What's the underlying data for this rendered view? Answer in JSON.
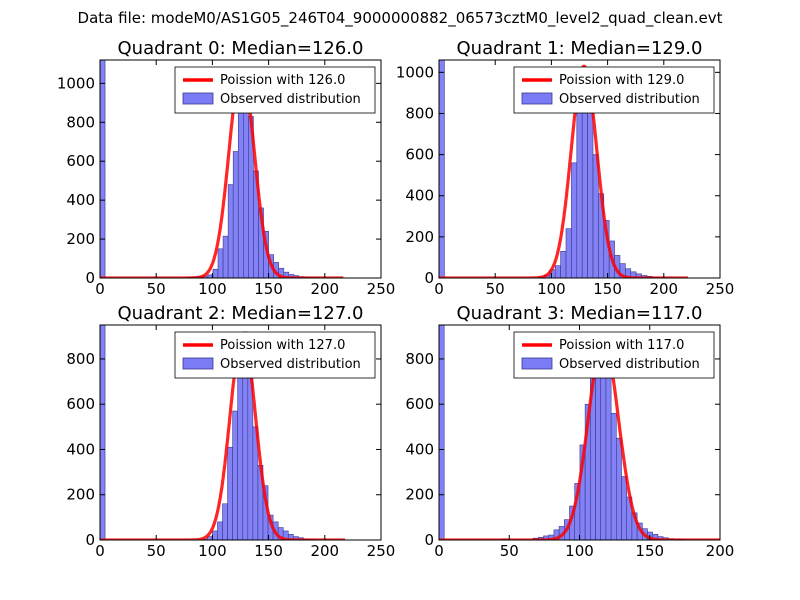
{
  "suptitle": "Data file: modeM0/AS1G05_246T04_9000000882_06573cztM0_level2_quad_clean.evt",
  "colors": {
    "bar": "#7b7bf5",
    "bar_edge": "#3a3a8a",
    "poisson": "#ff0000"
  },
  "chart_data": [
    {
      "type": "bar",
      "quadrant": 0,
      "title": "Quadrant 0: Median=126.0",
      "legend": [
        "Poission with 126.0",
        "Observed distribution"
      ],
      "legend_location": "top-right",
      "xlim": [
        0,
        250
      ],
      "ylim": [
        0,
        1120
      ],
      "xticks": [
        0,
        50,
        100,
        150,
        200,
        250
      ],
      "yticks": [
        0,
        200,
        400,
        600,
        800,
        1000
      ],
      "median": 126.0,
      "poisson_peak": 1075,
      "bin_width": 4.5,
      "bins": [
        [
          0,
          1120
        ],
        [
          78,
          4
        ],
        [
          82.5,
          6
        ],
        [
          87,
          8
        ],
        [
          91.5,
          10
        ],
        [
          96,
          16
        ],
        [
          100.5,
          45
        ],
        [
          105,
          150
        ],
        [
          109.5,
          215
        ],
        [
          114,
          480
        ],
        [
          118.5,
          650
        ],
        [
          123,
          860
        ],
        [
          127.5,
          940
        ],
        [
          132,
          830
        ],
        [
          136.5,
          550
        ],
        [
          141,
          360
        ],
        [
          145.5,
          240
        ],
        [
          150,
          120
        ],
        [
          154.5,
          80
        ],
        [
          159,
          50
        ],
        [
          163.5,
          30
        ],
        [
          168,
          18
        ],
        [
          172.5,
          12
        ],
        [
          177,
          7
        ],
        [
          181.5,
          4
        ],
        [
          186,
          3
        ],
        [
          190.5,
          2
        ]
      ]
    },
    {
      "type": "bar",
      "quadrant": 1,
      "title": "Quadrant 1: Median=129.0",
      "legend": [
        "Poission with 129.0",
        "Observed distribution"
      ],
      "legend_location": "top-right",
      "xlim": [
        0,
        250
      ],
      "ylim": [
        0,
        1060
      ],
      "xticks": [
        0,
        50,
        100,
        150,
        200,
        250
      ],
      "yticks": [
        0,
        200,
        400,
        600,
        800,
        1000
      ],
      "median": 129.0,
      "poisson_peak": 1030,
      "bin_width": 4.8,
      "bins": [
        [
          0,
          1060
        ],
        [
          89,
          4
        ],
        [
          93.8,
          12
        ],
        [
          98.6,
          40
        ],
        [
          103.4,
          60
        ],
        [
          108.2,
          130
        ],
        [
          113,
          240
        ],
        [
          117.8,
          560
        ],
        [
          122.6,
          830
        ],
        [
          127.4,
          1010
        ],
        [
          132.2,
          850
        ],
        [
          137,
          600
        ],
        [
          141.8,
          410
        ],
        [
          146.6,
          280
        ],
        [
          151.4,
          180
        ],
        [
          156.2,
          110
        ],
        [
          161,
          70
        ],
        [
          165.8,
          45
        ],
        [
          170.6,
          30
        ],
        [
          175.4,
          20
        ],
        [
          180.2,
          12
        ],
        [
          185,
          8
        ],
        [
          189.8,
          4
        ],
        [
          194.6,
          2
        ]
      ]
    },
    {
      "type": "bar",
      "quadrant": 2,
      "title": "Quadrant 2: Median=127.0",
      "legend": [
        "Poission with 127.0",
        "Observed distribution"
      ],
      "legend_location": "top-right",
      "xlim": [
        0,
        250
      ],
      "ylim": [
        0,
        950
      ],
      "xticks": [
        0,
        50,
        100,
        150,
        200,
        250
      ],
      "yticks": [
        0,
        200,
        400,
        600,
        800
      ],
      "median": 127.0,
      "poisson_peak": 910,
      "bin_width": 4.5,
      "bins": [
        [
          0,
          950
        ],
        [
          91,
          4
        ],
        [
          95.5,
          15
        ],
        [
          100,
          40
        ],
        [
          104.5,
          80
        ],
        [
          109,
          160
        ],
        [
          113.5,
          410
        ],
        [
          118,
          570
        ],
        [
          122.5,
          720
        ],
        [
          127,
          920
        ],
        [
          131.5,
          720
        ],
        [
          136,
          500
        ],
        [
          140.5,
          330
        ],
        [
          145,
          240
        ],
        [
          149.5,
          110
        ],
        [
          154,
          80
        ],
        [
          158.5,
          55
        ],
        [
          163,
          40
        ],
        [
          167.5,
          25
        ],
        [
          172,
          15
        ],
        [
          176.5,
          10
        ],
        [
          181,
          5
        ],
        [
          185.5,
          3
        ]
      ]
    },
    {
      "type": "bar",
      "quadrant": 3,
      "title": "Quadrant 3: Median=117.0",
      "legend": [
        "Poission with 117.0",
        "Observed distribution"
      ],
      "legend_location": "top-right",
      "xlim": [
        0,
        200
      ],
      "ylim": [
        0,
        950
      ],
      "xticks": [
        0,
        50,
        100,
        150,
        200
      ],
      "yticks": [
        0,
        200,
        400,
        600,
        800
      ],
      "median": 117.0,
      "poisson_peak": 880,
      "bin_width": 3.7,
      "bins": [
        [
          0,
          950
        ],
        [
          45,
          5
        ],
        [
          67,
          8
        ],
        [
          70.7,
          12
        ],
        [
          74.4,
          18
        ],
        [
          78.1,
          22
        ],
        [
          81.8,
          45
        ],
        [
          85.5,
          60
        ],
        [
          89.2,
          90
        ],
        [
          92.9,
          150
        ],
        [
          96.6,
          250
        ],
        [
          100.3,
          420
        ],
        [
          104,
          600
        ],
        [
          107.7,
          720
        ],
        [
          111.4,
          780
        ],
        [
          115.1,
          860
        ],
        [
          118.8,
          760
        ],
        [
          122.5,
          560
        ],
        [
          126.2,
          450
        ],
        [
          129.9,
          280
        ],
        [
          133.6,
          190
        ],
        [
          137.3,
          120
        ],
        [
          141,
          75
        ],
        [
          144.7,
          50
        ],
        [
          148.4,
          35
        ],
        [
          152.1,
          25
        ],
        [
          155.8,
          15
        ],
        [
          159.5,
          10
        ],
        [
          163.2,
          6
        ],
        [
          166.9,
          4
        ],
        [
          170.6,
          3
        ],
        [
          174.3,
          2
        ]
      ]
    }
  ]
}
